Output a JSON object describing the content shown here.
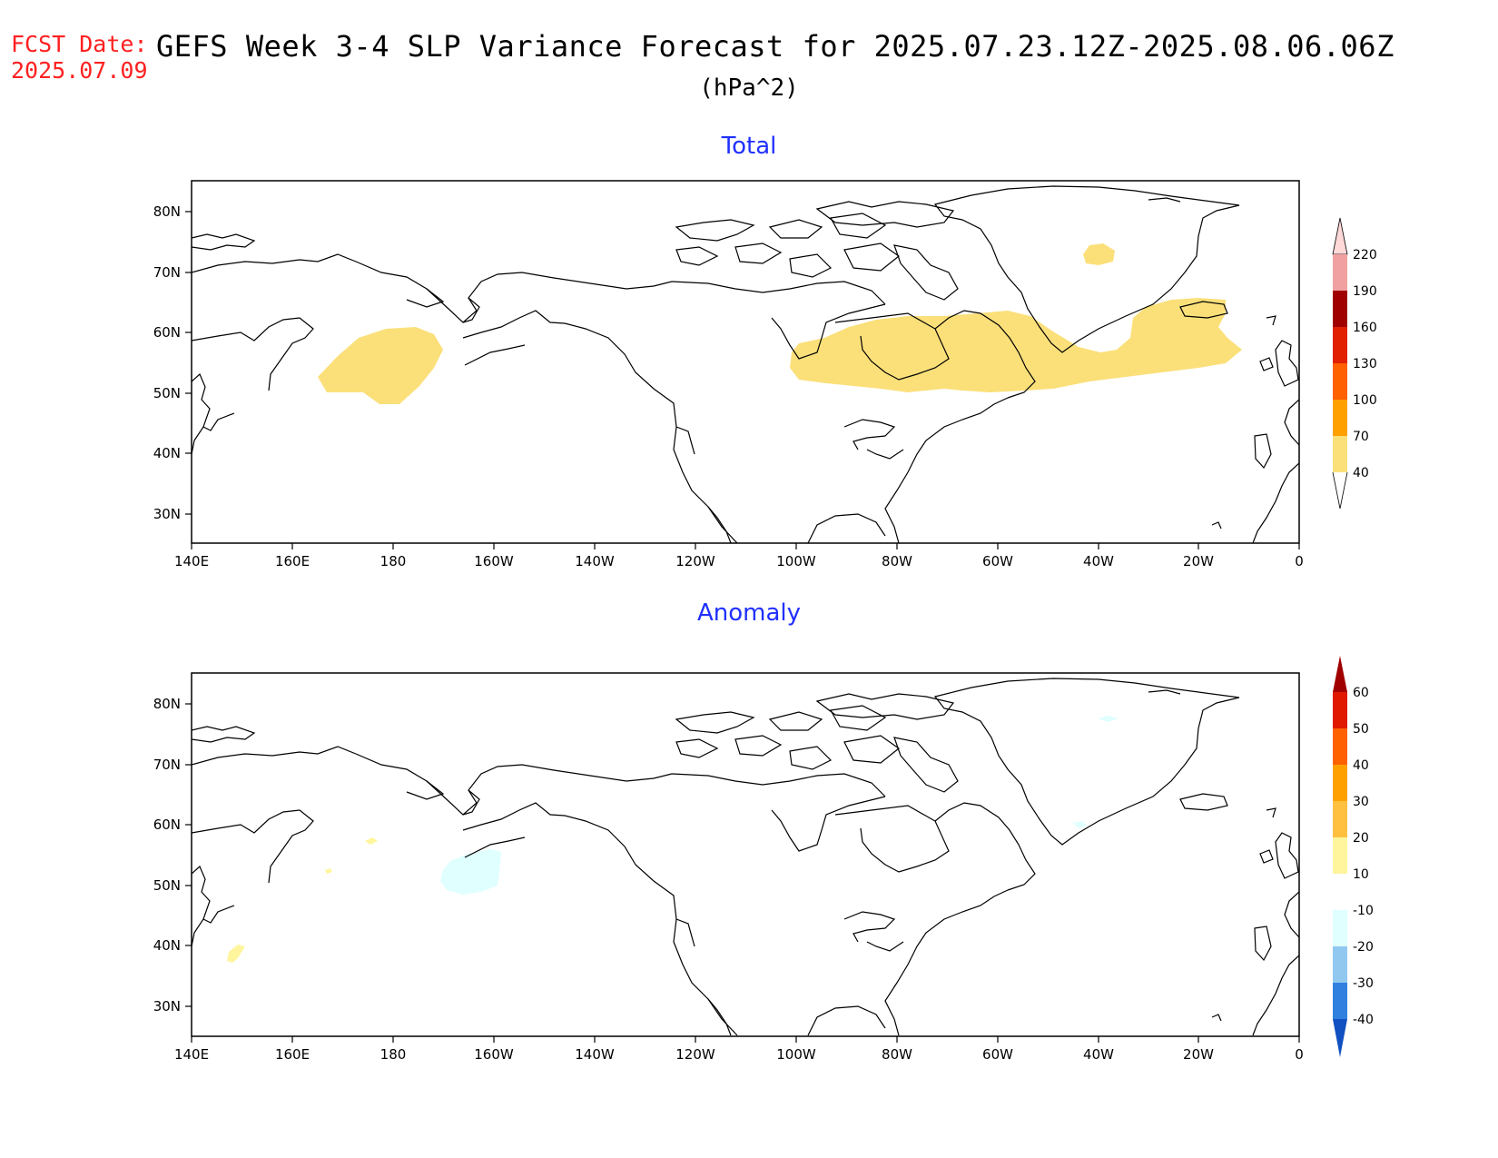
{
  "header": {
    "fcst_label": "FCST Date:",
    "fcst_date": "2025.07.09",
    "title": "GEFS Week 3-4 SLP Variance Forecast for 2025.07.23.12Z-2025.08.06.06Z",
    "units": "(hPa^2)"
  },
  "axes": {
    "lon_labels": [
      "140E",
      "160E",
      "180",
      "160W",
      "140W",
      "120W",
      "100W",
      "80W",
      "60W",
      "40W",
      "20W",
      "0"
    ],
    "lat_labels": [
      "80N",
      "70N",
      "60N",
      "50N",
      "40N",
      "30N"
    ]
  },
  "panels": [
    {
      "title": "Total",
      "colorbar": {
        "labels": [
          "220",
          "190",
          "160",
          "130",
          "100",
          "70",
          "40"
        ],
        "colors": [
          "#ffd8d8",
          "#f0a0a0",
          "#a00000",
          "#e02000",
          "#ff6000",
          "#ffa000",
          "#fbe07a"
        ]
      },
      "shading": [
        {
          "region": "North Pacific near dateline",
          "value_range": "40-70",
          "color": "#fbe07a"
        },
        {
          "region": "Hudson Bay to Labrador Sea and North Atlantic",
          "value_range": "40-70",
          "color": "#fbe07a"
        },
        {
          "region": "Central Greenland",
          "value_range": "40-70",
          "color": "#fbe07a"
        }
      ]
    },
    {
      "title": "Anomaly",
      "colorbar": {
        "labels": [
          "60",
          "50",
          "40",
          "30",
          "20",
          "10",
          "-10",
          "-20",
          "-30",
          "-40"
        ],
        "colors": [
          "#a00000",
          "#e01800",
          "#ff6000",
          "#ffa000",
          "#ffc040",
          "#fff59d",
          "#ffffff",
          "#e0ffff",
          "#90c8f0",
          "#3080e0",
          "#1050c0"
        ]
      },
      "shading": [
        {
          "region": "Gulf of Alaska",
          "value_range": "-10 to -20",
          "color": "#e0ffff"
        },
        {
          "region": "East of Japan",
          "value_range": "10 to 20",
          "color": "#fff59d"
        }
      ]
    }
  ]
}
